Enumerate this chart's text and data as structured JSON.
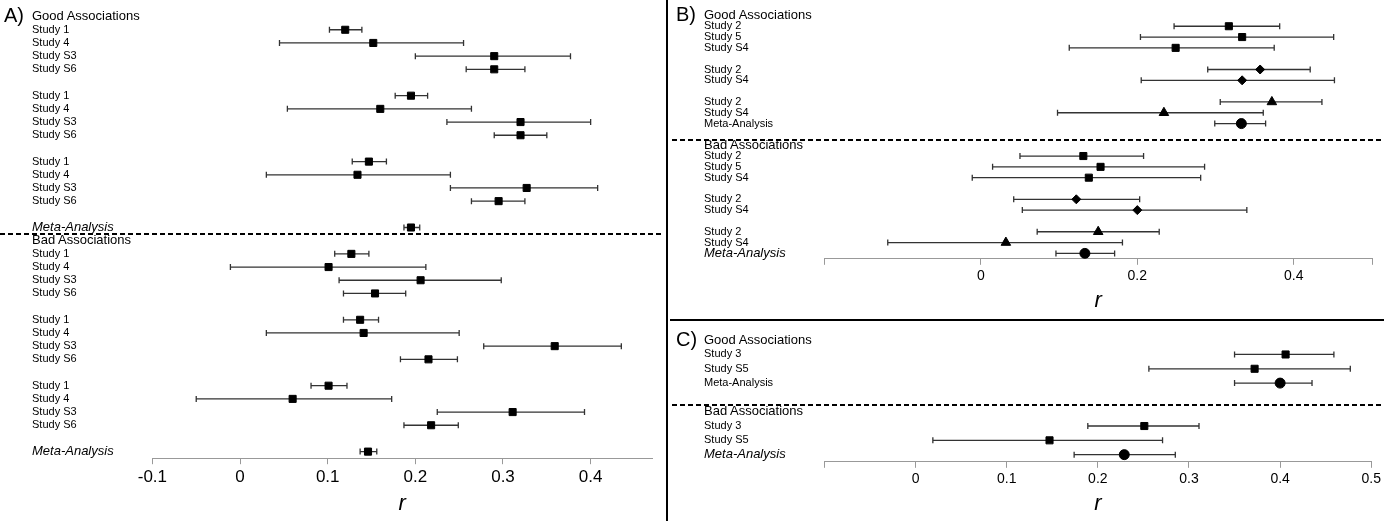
{
  "chart_data": [
    {
      "type": "scatter",
      "title": "A)",
      "xlabel": "r",
      "orientation": "horizontal",
      "grid": false,
      "categories": [
        "Good Associations",
        "Study 1",
        "Study 4",
        "Study S3",
        "Study S6",
        null,
        "Study 1",
        "Study 4",
        "Study S3",
        "Study S6",
        null,
        "Study 1",
        "Study 4",
        "Study S3",
        "Study S6",
        null,
        "Meta-Analysis",
        "Bad Associations",
        "Study 1",
        "Study 4",
        "Study S3",
        "Study S6",
        null,
        "Study 1",
        "Study 4",
        "Study S3",
        "Study S6",
        null,
        "Study 1",
        "Study 4",
        "Study S3",
        "Study S6",
        null,
        "Meta-Analysis"
      ],
      "xlim": [
        -0.1,
        0.47
      ],
      "xticks": [
        -0.1,
        0,
        0.1,
        0.2,
        0.3,
        0.4
      ],
      "series": [
        {
          "color": "#000000",
          "marker": "square",
          "values": [
            null,
            0.12,
            0.152,
            0.29,
            0.29,
            null,
            0.195,
            0.16,
            0.32,
            0.32,
            null,
            0.147,
            0.134,
            0.327,
            0.295,
            null,
            0.195,
            null,
            0.127,
            0.101,
            0.206,
            0.154,
            null,
            0.137,
            0.141,
            0.359,
            0.215,
            null,
            0.101,
            0.06,
            0.311,
            0.218,
            null,
            0.146
          ],
          "errors": [
            null,
            [
              0.102,
              0.139
            ],
            [
              0.045,
              0.255
            ],
            [
              0.2,
              0.377
            ],
            [
              0.258,
              0.325
            ],
            null,
            [
              0.177,
              0.214
            ],
            [
              0.054,
              0.264
            ],
            [
              0.236,
              0.4
            ],
            [
              0.29,
              0.35
            ],
            null,
            [
              0.128,
              0.167
            ],
            [
              0.03,
              0.24
            ],
            [
              0.24,
              0.408
            ],
            [
              0.264,
              0.325
            ],
            null,
            [
              0.187,
              0.205
            ],
            null,
            [
              0.108,
              0.147
            ],
            [
              -0.011,
              0.212
            ],
            [
              0.113,
              0.298
            ],
            [
              0.118,
              0.189
            ],
            null,
            [
              0.118,
              0.158
            ],
            [
              0.03,
              0.25
            ],
            [
              0.278,
              0.435
            ],
            [
              0.183,
              0.248
            ],
            null,
            [
              0.081,
              0.122
            ],
            [
              -0.05,
              0.173
            ],
            [
              0.225,
              0.393
            ],
            [
              0.187,
              0.249
            ],
            null,
            [
              0.137,
              0.156
            ]
          ]
        }
      ]
    },
    {
      "type": "scatter",
      "title": "B)",
      "xlabel": "r",
      "orientation": "horizontal",
      "grid": false,
      "categories": [
        "Good Associations",
        "Study 2",
        "Study 5",
        "Study S4",
        null,
        "Study 2",
        "Study S4",
        null,
        "Study 2",
        "Study S4",
        "Meta-Analysis",
        null,
        "Bad Associations",
        "Study 2",
        "Study 5",
        "Study S4",
        null,
        "Study 2",
        "Study S4",
        null,
        "Study 2",
        "Study S4",
        "Meta-Analysis"
      ],
      "xlim": [
        -0.2,
        0.5
      ],
      "xticks": [
        {
          "value": -0.2,
          "label": null
        },
        0,
        0.2,
        0.4,
        {
          "value": 0.5,
          "label": null
        }
      ],
      "series": [
        {
          "color": "#000000",
          "marker": "square",
          "values": [
            null,
            0.317,
            0.334,
            0.249,
            null,
            null,
            null,
            null,
            null,
            null,
            null,
            null,
            null,
            0.131,
            0.153,
            0.138,
            null,
            null,
            null,
            null,
            null,
            null,
            null
          ],
          "errors": [
            null,
            [
              0.247,
              0.382
            ],
            [
              0.204,
              0.451
            ],
            [
              0.113,
              0.375
            ],
            null,
            null,
            null,
            null,
            null,
            null,
            null,
            null,
            null,
            [
              0.05,
              0.208
            ],
            [
              0.015,
              0.286
            ],
            [
              -0.011,
              0.281
            ],
            null,
            null,
            null,
            null,
            null,
            null,
            null
          ]
        },
        {
          "color": "#000000",
          "marker": "diamond",
          "values": [
            null,
            null,
            null,
            null,
            null,
            0.357,
            0.334,
            null,
            null,
            null,
            null,
            null,
            null,
            null,
            null,
            null,
            null,
            0.122,
            0.2,
            null,
            null,
            null,
            null
          ],
          "errors": [
            null,
            null,
            null,
            null,
            null,
            [
              0.29,
              0.421
            ],
            [
              0.205,
              0.452
            ],
            null,
            null,
            null,
            null,
            null,
            null,
            null,
            null,
            null,
            null,
            [
              0.042,
              0.203
            ],
            [
              0.053,
              0.34
            ],
            null,
            null,
            null,
            null
          ]
        },
        {
          "color": "#000000",
          "marker": "triangle",
          "values": [
            null,
            null,
            null,
            null,
            null,
            null,
            null,
            null,
            0.372,
            0.234,
            null,
            null,
            null,
            null,
            null,
            null,
            null,
            null,
            null,
            null,
            0.15,
            0.032,
            null
          ],
          "errors": [
            null,
            null,
            null,
            null,
            null,
            null,
            null,
            null,
            [
              0.306,
              0.436
            ],
            [
              0.098,
              0.361
            ],
            null,
            null,
            null,
            null,
            null,
            null,
            null,
            null,
            null,
            null,
            [
              0.072,
              0.228
            ],
            [
              -0.119,
              0.181
            ],
            null
          ]
        },
        {
          "color": "#000000",
          "marker": "circle",
          "values": [
            null,
            null,
            null,
            null,
            null,
            null,
            null,
            null,
            null,
            null,
            0.333,
            null,
            null,
            null,
            null,
            null,
            null,
            null,
            null,
            null,
            null,
            null,
            0.133
          ],
          "errors": [
            null,
            null,
            null,
            null,
            null,
            null,
            null,
            null,
            null,
            null,
            [
              0.299,
              0.364
            ],
            null,
            null,
            null,
            null,
            null,
            null,
            null,
            null,
            null,
            null,
            null,
            [
              0.096,
              0.171
            ]
          ]
        }
      ]
    },
    {
      "type": "scatter",
      "title": "C)",
      "xlabel": "r",
      "orientation": "horizontal",
      "grid": false,
      "categories": [
        "Good Associations",
        "Study 3",
        "Study S5",
        "Meta-Analysis",
        null,
        "Bad Associations",
        "Study 3",
        "Study S5",
        "Meta-Analysis"
      ],
      "xlim": [
        -0.1,
        0.5
      ],
      "xticks": [
        {
          "value": -0.1,
          "label": null
        },
        0,
        0.1,
        0.2,
        0.3,
        0.4,
        0.5
      ],
      "series": [
        {
          "color": "#000000",
          "marker": "square",
          "values": [
            null,
            0.406,
            0.372,
            null,
            null,
            null,
            0.251,
            0.147,
            null
          ],
          "errors": [
            null,
            [
              0.35,
              0.459
            ],
            [
              0.256,
              0.477
            ],
            null,
            null,
            null,
            [
              0.189,
              0.311
            ],
            [
              0.019,
              0.271
            ],
            null
          ]
        },
        {
          "color": "#000000",
          "marker": "circle",
          "values": [
            null,
            null,
            null,
            0.4,
            null,
            null,
            null,
            null,
            0.229
          ],
          "errors": [
            null,
            null,
            null,
            [
              0.35,
              0.435
            ],
            null,
            null,
            null,
            null,
            [
              0.174,
              0.285
            ]
          ]
        }
      ]
    }
  ]
}
